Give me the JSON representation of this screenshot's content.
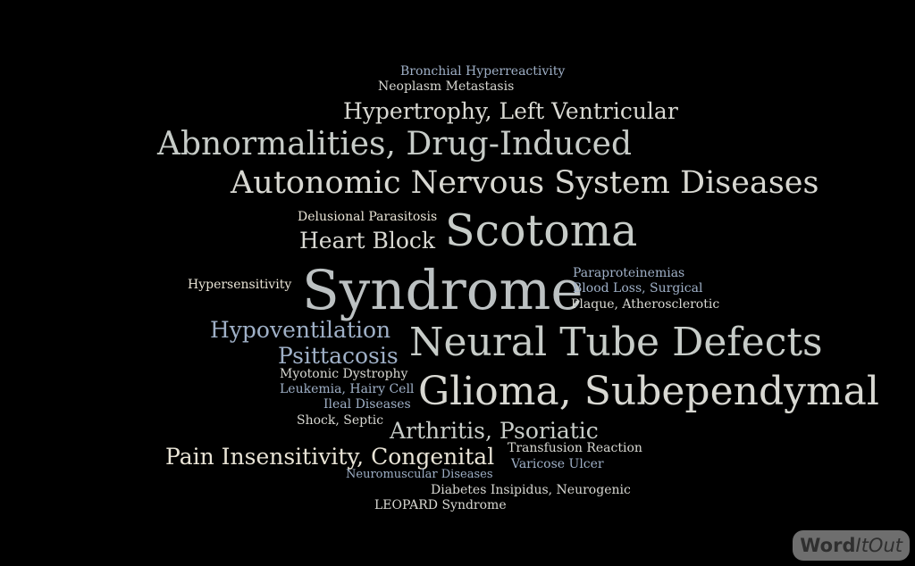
{
  "words": [
    {
      "id": "bronchial-hyperreactivity",
      "text": "Bronchial Hyperreactivity"
    },
    {
      "id": "neoplasm-metastasis",
      "text": "Neoplasm Metastasis"
    },
    {
      "id": "hypertrophy-left-ventricular",
      "text": "Hypertrophy, Left Ventricular"
    },
    {
      "id": "abnormalities-drug-induced",
      "text": "Abnormalities, Drug-Induced"
    },
    {
      "id": "autonomic-nervous-system-diseases",
      "text": "Autonomic Nervous System Diseases"
    },
    {
      "id": "delusional-parasitosis",
      "text": "Delusional Parasitosis"
    },
    {
      "id": "scotoma",
      "text": "Scotoma"
    },
    {
      "id": "heart-block",
      "text": "Heart Block"
    },
    {
      "id": "hypersensitivity",
      "text": "Hypersensitivity"
    },
    {
      "id": "syndrome",
      "text": "Syndrome"
    },
    {
      "id": "paraproteinemias",
      "text": "Paraproteinemias"
    },
    {
      "id": "blood-loss-surgical",
      "text": "Blood Loss, Surgical"
    },
    {
      "id": "plaque-atherosclerotic",
      "text": "Plaque, Atherosclerotic"
    },
    {
      "id": "hypoventilation",
      "text": "Hypoventilation"
    },
    {
      "id": "neural-tube-defects",
      "text": "Neural Tube Defects"
    },
    {
      "id": "psittacosis",
      "text": "Psittacosis"
    },
    {
      "id": "myotonic-dystrophy",
      "text": "Myotonic Dystrophy"
    },
    {
      "id": "leukemia-hairy-cell",
      "text": "Leukemia, Hairy Cell"
    },
    {
      "id": "glioma-subependymal",
      "text": "Glioma, Subependymal"
    },
    {
      "id": "ileal-diseases",
      "text": "Ileal Diseases"
    },
    {
      "id": "shock-septic",
      "text": "Shock, Septic"
    },
    {
      "id": "arthritis-psoriatic",
      "text": "Arthritis, Psoriatic"
    },
    {
      "id": "transfusion-reaction",
      "text": "Transfusion Reaction"
    },
    {
      "id": "pain-insensitivity-congenital",
      "text": "Pain Insensitivity, Congenital"
    },
    {
      "id": "varicose-ulcer",
      "text": "Varicose Ulcer"
    },
    {
      "id": "neuromuscular-diseases",
      "text": "Neuromuscular Diseases"
    },
    {
      "id": "diabetes-insipidus-neurogenic",
      "text": "Diabetes Insipidus, Neurogenic"
    },
    {
      "id": "leopard-syndrome",
      "text": "LEOPARD Syndrome"
    }
  ],
  "brand": {
    "part1": "Word",
    "part2": "ItOut"
  }
}
